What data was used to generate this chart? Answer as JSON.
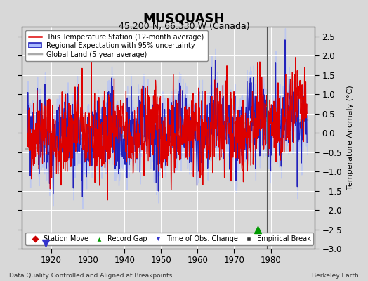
{
  "title": "MUSQUASH",
  "subtitle": "45.200 N, 66.330 W (Canada)",
  "ylabel": "Temperature Anomaly (°C)",
  "xlabel_left": "Data Quality Controlled and Aligned at Breakpoints",
  "xlabel_right": "Berkeley Earth",
  "xlim": [
    1912,
    1992
  ],
  "ylim": [
    -3,
    2.75
  ],
  "yticks": [
    -3,
    -2.5,
    -2,
    -1.5,
    -1,
    -0.5,
    0,
    0.5,
    1,
    1.5,
    2,
    2.5
  ],
  "xticks": [
    1920,
    1930,
    1940,
    1950,
    1960,
    1970,
    1980
  ],
  "bg_color": "#d8d8d8",
  "plot_bg_color": "#d8d8d8",
  "grid_color": "#ffffff",
  "vertical_line_x": 1979,
  "record_gap_x": 1976.5,
  "record_gap_y": -2.5,
  "obs_change_x": 1918.5,
  "obs_change_y": -2.85,
  "legend_entries": [
    {
      "label": "This Temperature Station (12-month average)",
      "color": "#dd0000",
      "lw": 1.5
    },
    {
      "label": "Regional Expectation with 95% uncertainty",
      "color": "#3333cc",
      "lw": 1.5
    },
    {
      "label": "Global Land (5-year average)",
      "color": "#aaaaaa",
      "lw": 2.5
    }
  ],
  "bottom_legend": [
    {
      "label": "Station Move",
      "marker": "D",
      "color": "#cc0000"
    },
    {
      "label": "Record Gap",
      "marker": "^",
      "color": "#009900"
    },
    {
      "label": "Time of Obs. Change",
      "marker": "v",
      "color": "#3333cc"
    },
    {
      "label": "Empirical Break",
      "marker": "s",
      "color": "#333333"
    }
  ]
}
